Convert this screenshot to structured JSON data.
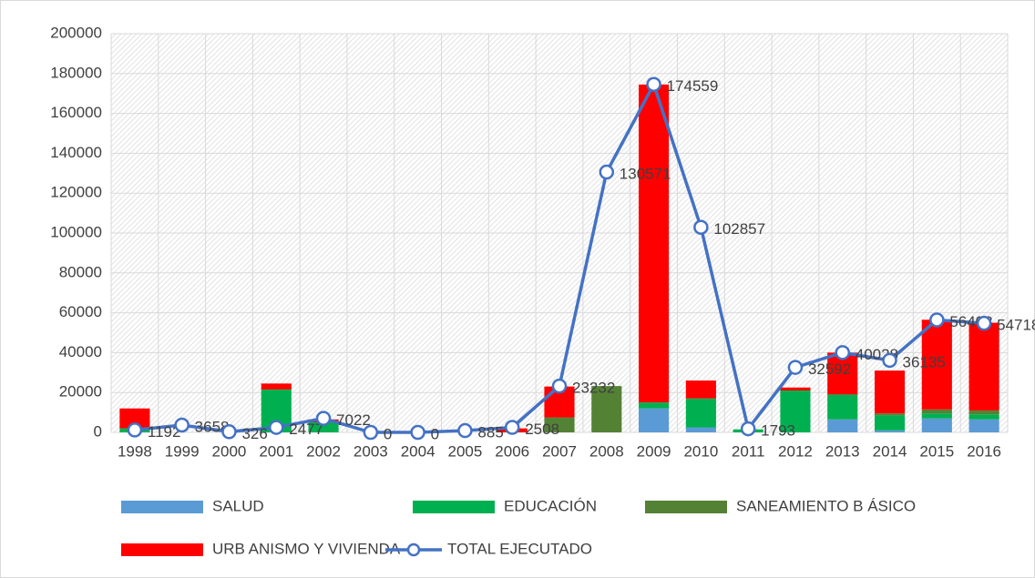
{
  "chart_data": {
    "type": "bar",
    "categories": [
      "1998",
      "1999",
      "2000",
      "2001",
      "2002",
      "2003",
      "2004",
      "2005",
      "2006",
      "2007",
      "2008",
      "2009",
      "2010",
      "2011",
      "2012",
      "2013",
      "2014",
      "2015",
      "2016"
    ],
    "series": [
      {
        "name": "SALUD",
        "color": "#5b9bd5",
        "values": [
          0,
          0,
          0,
          0,
          0,
          0,
          0,
          0,
          0,
          0,
          0,
          12000,
          2500,
          0,
          0,
          6500,
          1000,
          7000,
          6500
        ]
      },
      {
        "name": "EDUCACIÓN",
        "color": "#00b050",
        "values": [
          2000,
          0,
          0,
          21500,
          5000,
          0,
          0,
          0,
          0,
          0,
          0,
          3000,
          14500,
          1500,
          21000,
          12500,
          7500,
          2500,
          2500
        ]
      },
      {
        "name": "SANEAMIENTO B ÁSICO",
        "color": "#548235",
        "values": [
          0,
          0,
          0,
          0,
          0,
          0,
          0,
          0,
          0,
          7500,
          23232,
          0,
          0,
          0,
          0,
          0,
          1000,
          2000,
          2000
        ]
      },
      {
        "name": "URB ANISMO Y VIVIENDA",
        "color": "#ff0000",
        "values": [
          10000,
          0,
          0,
          3000,
          1500,
          0,
          0,
          0,
          2000,
          15500,
          0,
          159500,
          9000,
          0,
          1500,
          21000,
          21500,
          45000,
          44000
        ]
      },
      {
        "name": "TOTAL EJECUTADO",
        "color": "#4472c4",
        "type": "line",
        "values": [
          1192,
          3658,
          326,
          2477,
          7022,
          0,
          0,
          885,
          2508,
          23232,
          130571,
          174559,
          102857,
          1793,
          32592,
          40028,
          36135,
          56408,
          54718
        ]
      }
    ],
    "ylim": [
      0,
      200000
    ],
    "yticks": [
      0,
      20000,
      40000,
      60000,
      80000,
      100000,
      120000,
      140000,
      160000,
      180000,
      200000
    ],
    "grid": true
  }
}
